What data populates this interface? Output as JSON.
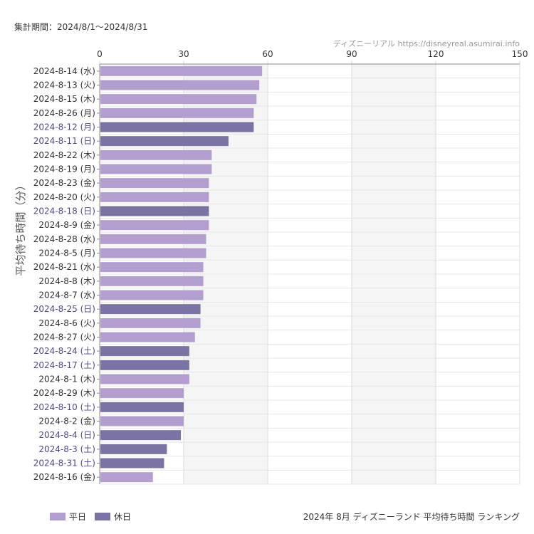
{
  "header": {
    "period": "集計期間：2024/8/1～2024/8/31",
    "source": "ディズニーリアル https://disneyreal.asumirai.info"
  },
  "footer": {
    "title": "2024年 8月 ディズニーランド 平均待ち時間 ランキング"
  },
  "legend": [
    {
      "label": "平日",
      "color": "#b39fcf"
    },
    {
      "label": "休日",
      "color": "#7b73a3"
    }
  ],
  "colors": {
    "weekday": "#b39fcf",
    "holiday": "#7b73a3",
    "holiday_label": "#4e4a8a",
    "weekday_label": "#333333"
  },
  "chart_data": {
    "type": "bar",
    "orientation": "horizontal",
    "ylabel": "平均待ち時間（分）",
    "xlim": [
      0,
      150
    ],
    "xticks": [
      0,
      30,
      60,
      90,
      120,
      150
    ],
    "grid": true,
    "legend_position": "bottom-left",
    "categories": [
      "2024-8-14 (水)",
      "2024-8-13 (火)",
      "2024-8-15 (木)",
      "2024-8-26 (月)",
      "2024-8-12 (月)",
      "2024-8-11 (日)",
      "2024-8-22 (木)",
      "2024-8-19 (月)",
      "2024-8-23 (金)",
      "2024-8-20 (火)",
      "2024-8-18 (日)",
      "2024-8-9 (金)",
      "2024-8-28 (水)",
      "2024-8-5 (月)",
      "2024-8-21 (水)",
      "2024-8-8 (木)",
      "2024-8-7 (水)",
      "2024-8-25 (日)",
      "2024-8-6 (火)",
      "2024-8-27 (火)",
      "2024-8-24 (土)",
      "2024-8-17 (土)",
      "2024-8-1 (木)",
      "2024-8-29 (木)",
      "2024-8-10 (土)",
      "2024-8-2 (金)",
      "2024-8-4 (日)",
      "2024-8-3 (土)",
      "2024-8-31 (土)",
      "2024-8-16 (金)"
    ],
    "values": [
      58,
      57,
      56,
      55,
      55,
      46,
      40,
      40,
      39,
      39,
      39,
      39,
      38,
      38,
      37,
      37,
      37,
      36,
      36,
      34,
      32,
      32,
      32,
      30,
      30,
      30,
      29,
      24,
      23,
      19
    ],
    "day_type": [
      "平日",
      "平日",
      "平日",
      "平日",
      "休日",
      "休日",
      "平日",
      "平日",
      "平日",
      "平日",
      "休日",
      "平日",
      "平日",
      "平日",
      "平日",
      "平日",
      "平日",
      "休日",
      "平日",
      "平日",
      "休日",
      "休日",
      "平日",
      "平日",
      "休日",
      "平日",
      "休日",
      "休日",
      "休日",
      "平日"
    ]
  }
}
